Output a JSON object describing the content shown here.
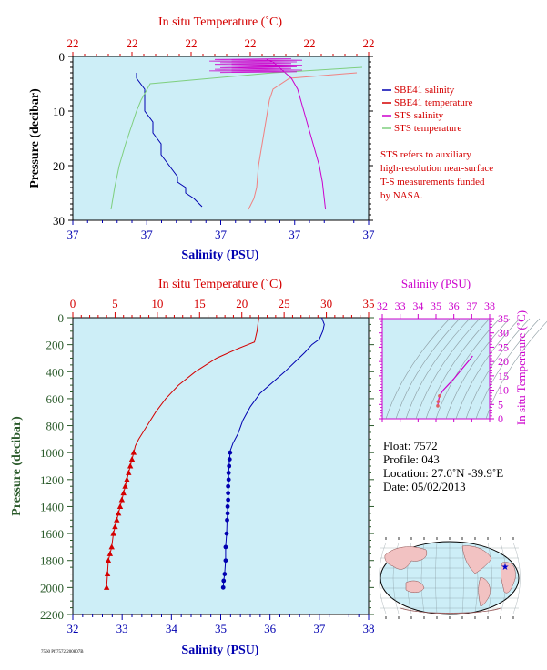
{
  "top_panel": {
    "top_axis_title": "In situ Temperature (˚C)",
    "top_ticks": [
      "22",
      "22",
      "22",
      "22",
      "22",
      "22"
    ],
    "left_axis_title": "Pressure (decibar)",
    "left_ticks": [
      "0",
      "10",
      "20",
      "30"
    ],
    "bottom_axis_title": "Salinity (PSU)",
    "bottom_ticks": [
      "37",
      "37",
      "37",
      "37",
      "37"
    ]
  },
  "legend": {
    "items": [
      {
        "label": "SBE41 salinity",
        "color": "#0000b0"
      },
      {
        "label": "SBE41 temperature",
        "color": "#d40000"
      },
      {
        "label": "STS salinity",
        "color": "#cc00cc"
      },
      {
        "label": "STS temperature",
        "color": "#7fcf7f"
      }
    ],
    "note_lines": [
      "STS refers to auxiliary",
      "high-resolution near-surface",
      "T-S measurements funded",
      "by NASA."
    ]
  },
  "main_panel": {
    "top_axis_title": "In situ Temperature (˚C)",
    "left_axis_title": "Pressure (decibar)",
    "bottom_axis_title": "Salinity (PSU)"
  },
  "ts_panel": {
    "top_axis_title": "Salinity (PSU)",
    "right_axis_title": "In situ Temperature (˚C)"
  },
  "info": {
    "float": "Float: 7572",
    "profile": "Profile: 043",
    "location": "Location: 27.0˚N -39.9˚E",
    "date": "Date: 05/02/2013"
  },
  "footer_text": "7560 Pf.7572 200807B",
  "colors": {
    "plot_bg": "#cdeef7",
    "temperature": "#d40000",
    "salinity": "#0000b0",
    "sts_salinity": "#cc00cc",
    "sts_temperature": "#7fcf7f",
    "sts_temperature_profile": "#f08080",
    "ts_axis": "#cc00cc"
  },
  "chart_data": [
    {
      "type": "line",
      "title": "",
      "xlabel_top": "In situ Temperature (˚C)",
      "xlabel_bottom": "Salinity (PSU)",
      "ylabel": "Pressure (decibar)",
      "ylim": [
        30,
        0
      ],
      "y_ticks": [
        0,
        10,
        20,
        30
      ],
      "series": [
        {
          "name": "SBE41 salinity",
          "axis": "bottom",
          "x": [
            36.99,
            36.99,
            37.0,
            37.0,
            37.0,
            37.01,
            37.01,
            37.02,
            37.02,
            37.03,
            37.04,
            37.04,
            37.05,
            37.05,
            37.06,
            37.07
          ],
          "y": [
            3,
            4,
            6,
            8,
            10,
            12,
            14,
            16,
            18,
            20,
            22,
            23,
            24,
            25,
            26,
            27.5
          ]
        },
        {
          "name": "SBE41 temperature",
          "axis": "top",
          "x": [
            22.0,
            22.0,
            22.0,
            22.0,
            22.0,
            22.0,
            22.0,
            22.0,
            22.0,
            22.0,
            22.0,
            22.0,
            22.0,
            22.0
          ],
          "y": [
            3,
            4,
            6,
            8,
            10,
            12,
            14,
            16,
            18,
            20,
            22,
            24,
            26,
            28
          ]
        },
        {
          "name": "STS salinity",
          "axis": "bottom",
          "x": [
            37.0,
            37.02,
            37.04,
            37.06,
            37.08,
            37.1,
            37.11,
            37.12,
            37.13,
            37.14,
            37.15,
            37.16,
            37.17,
            37.18,
            37.19
          ],
          "y": [
            0.5,
            1,
            2,
            3,
            4,
            6,
            8,
            10,
            12,
            14,
            16,
            18,
            20,
            23,
            28
          ]
        },
        {
          "name": "STS temperature",
          "axis": "top",
          "x": [
            22.0,
            22.0,
            22.0,
            22.0,
            22.0,
            22.0,
            22.0,
            22.0,
            22.0,
            22.0
          ],
          "y": [
            2,
            3,
            5,
            8,
            10,
            12,
            16,
            20,
            24,
            28
          ]
        }
      ]
    },
    {
      "type": "line",
      "title": "",
      "xlabel_top": "In situ Temperature (˚C)",
      "xlabel_bottom": "Salinity (PSU)",
      "ylabel": "Pressure (decibar)",
      "xlim_top": [
        0,
        35
      ],
      "x_ticks_top": [
        0,
        5,
        10,
        15,
        20,
        25,
        30,
        35
      ],
      "xlim_bottom": [
        32,
        38
      ],
      "x_ticks_bottom": [
        32,
        33,
        34,
        35,
        36,
        37,
        38
      ],
      "ylim": [
        2200,
        0
      ],
      "y_ticks": [
        0,
        200,
        400,
        600,
        800,
        1000,
        1200,
        1400,
        1600,
        1800,
        2000,
        2200
      ],
      "series": [
        {
          "name": "Temperature",
          "axis": "top",
          "marker": "triangle",
          "x": [
            22.0,
            21.8,
            21.5,
            19.5,
            17.0,
            14.5,
            12.5,
            11.0,
            9.8,
            8.8,
            7.8,
            7.4,
            7.2,
            7.0,
            6.8,
            6.6,
            6.4,
            6.2,
            6.0,
            5.8,
            5.6,
            5.4,
            5.2,
            5.0,
            4.8,
            4.6,
            4.4,
            4.2,
            4.1,
            4.0
          ],
          "y": [
            0,
            100,
            180,
            230,
            300,
            400,
            500,
            600,
            700,
            800,
            900,
            950,
            1000,
            1050,
            1100,
            1150,
            1200,
            1250,
            1300,
            1350,
            1400,
            1450,
            1500,
            1550,
            1600,
            1700,
            1750,
            1800,
            1900,
            2000
          ],
          "marker_from_index": 12
        },
        {
          "name": "Salinity",
          "axis": "bottom",
          "marker": "circle",
          "x": [
            37.05,
            37.1,
            37.07,
            37.0,
            36.85,
            36.7,
            36.5,
            36.3,
            36.05,
            35.8,
            35.6,
            35.45,
            35.35,
            35.25,
            35.2,
            35.19,
            35.18,
            35.17,
            35.16,
            35.16,
            35.15,
            35.15,
            35.15,
            35.14,
            35.14,
            35.13,
            35.12,
            35.1,
            35.1,
            35.08,
            35.06,
            35.05
          ],
          "y": [
            0,
            50,
            100,
            160,
            200,
            260,
            330,
            400,
            480,
            560,
            660,
            760,
            860,
            930,
            980,
            1000,
            1050,
            1100,
            1150,
            1200,
            1250,
            1300,
            1350,
            1400,
            1450,
            1500,
            1600,
            1700,
            1800,
            1900,
            1950,
            2000
          ],
          "marker_from_index": 15
        }
      ]
    },
    {
      "type": "line",
      "title": "",
      "xlabel": "Salinity (PSU)",
      "ylabel": "In situ Temperature (˚C)",
      "xlim": [
        32,
        38
      ],
      "x_ticks": [
        32,
        33,
        34,
        35,
        36,
        37,
        38
      ],
      "ylim": [
        0,
        35
      ],
      "y_ticks": [
        0,
        5,
        10,
        15,
        20,
        25,
        30,
        35
      ],
      "series": [
        {
          "name": "T-S",
          "x": [
            35.1,
            35.12,
            35.2,
            35.4,
            35.7,
            36.0,
            36.4,
            36.8,
            37.0,
            37.05
          ],
          "y": [
            4.5,
            6,
            8,
            10,
            12,
            14,
            17,
            20,
            21.5,
            22
          ]
        }
      ]
    }
  ]
}
